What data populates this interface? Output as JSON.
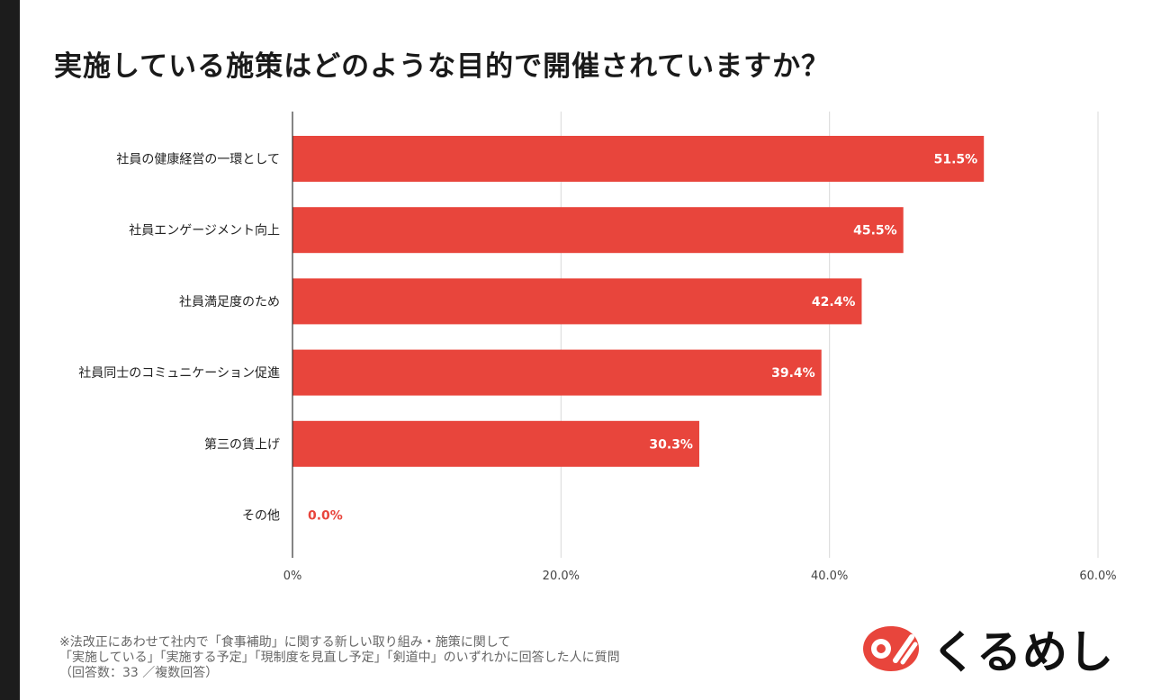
{
  "title": "実施している施策はどのような目的で開催されていますか？",
  "chart_data": {
    "type": "bar",
    "orientation": "horizontal",
    "categories": [
      "社員の健康経営の一環として",
      "社員エンゲージメント向上",
      "社員満足度のため",
      "社員同士のコミュニケーション促進",
      "第三の賃上げ",
      "その他"
    ],
    "values": [
      51.5,
      45.5,
      42.4,
      39.4,
      30.3,
      0.0
    ],
    "value_labels": [
      "51.5%",
      "45.5%",
      "42.4%",
      "39.4%",
      "30.3%",
      "0.0%"
    ],
    "xlim": [
      0,
      60
    ],
    "ticks": [
      0,
      20,
      40,
      60
    ],
    "tick_labels": [
      "0%",
      "20.0%",
      "40.0%",
      "60.0%"
    ],
    "grid": true,
    "bar_color": "#e8453c"
  },
  "footnote": {
    "line1": "※法改正にあわせて社内で「食事補助」に関する新しい取り組み・施策に関して",
    "line2": "「実施している」「実施する予定」「現制度を見直し予定」「剣道中」のいずれかに回答した人に質問",
    "line3": "（回答数：33 ／複数回答）"
  },
  "logo": {
    "text": "くるめし",
    "color": "#e8453c"
  }
}
